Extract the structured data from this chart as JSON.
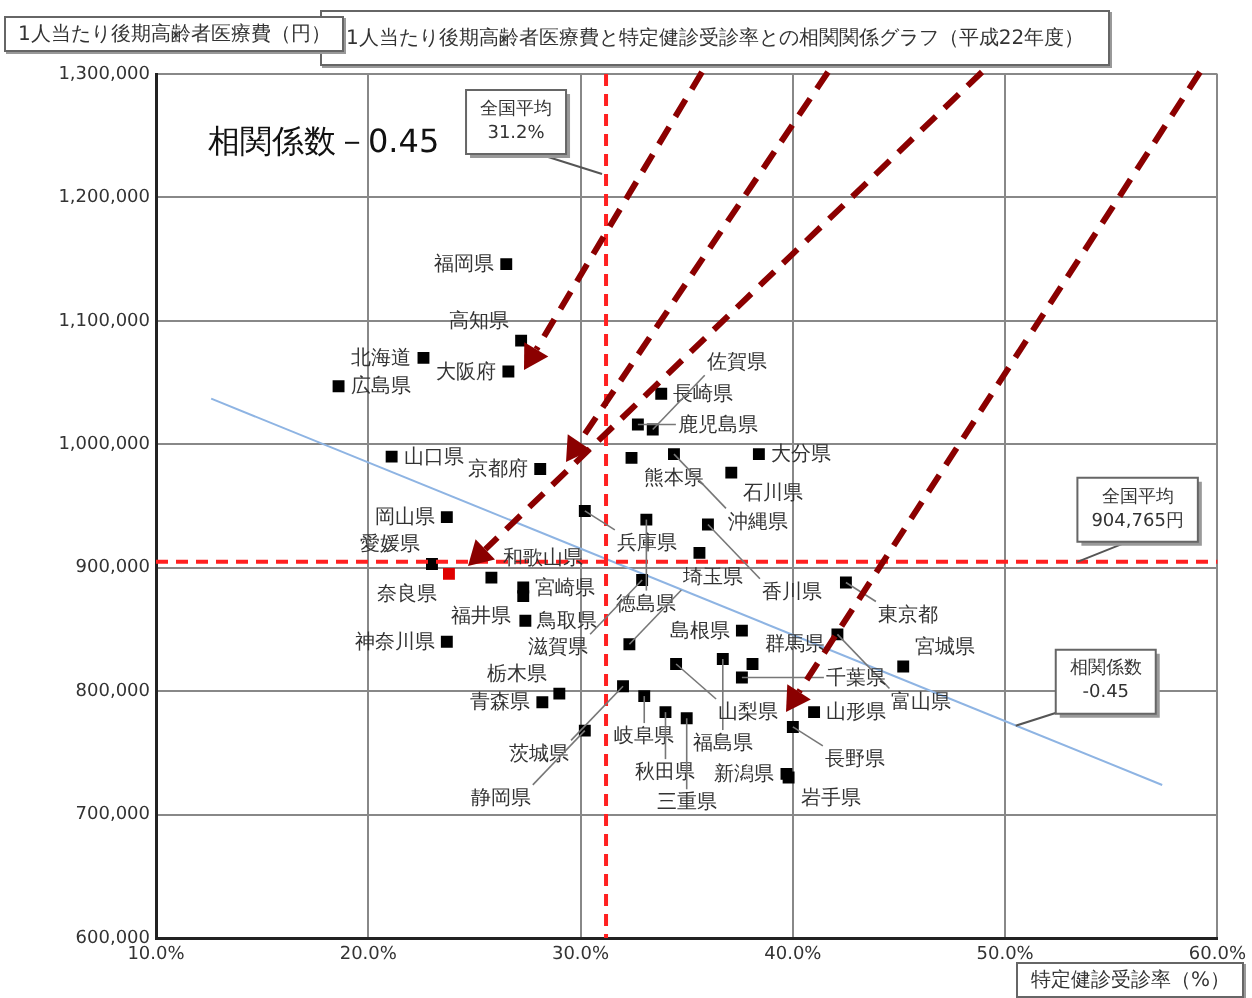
{
  "chart_data": {
    "type": "scatter",
    "title": "1人当たり後期高齢者医療費と特定健診受診率との相関関係グラフ（平成22年度）",
    "xlabel": "特定健診受診率（%）",
    "ylabel": "1人当たり後期高齢者医療費（円）",
    "xlim": [
      10,
      60
    ],
    "xticks": [
      {
        "value": 10,
        "label": "10.0%"
      },
      {
        "value": 20,
        "label": "20.0%"
      },
      {
        "value": 30,
        "label": "30.0%"
      },
      {
        "value": 40,
        "label": "40.0%"
      },
      {
        "value": 50,
        "label": "50.0%"
      },
      {
        "value": 60,
        "label": "60.0%"
      }
    ],
    "ylim": [
      600000,
      1300000
    ],
    "yticks": [
      {
        "value": 600000,
        "label": "600,000"
      },
      {
        "value": 700000,
        "label": "700,000"
      },
      {
        "value": 800000,
        "label": "800,000"
      },
      {
        "value": 900000,
        "label": "900,000"
      },
      {
        "value": 1000000,
        "label": "1,000,000"
      },
      {
        "value": 1100000,
        "label": "1,100,000"
      },
      {
        "value": 1200000,
        "label": "1,200,000"
      },
      {
        "value": 1300000,
        "label": "1,300,000"
      }
    ],
    "grid": true,
    "legend": false,
    "series": [
      {
        "type": "scatter",
        "marker": "square",
        "x": [
          26.5,
          27.2,
          26.6,
          22.6,
          18.6,
          21.1,
          28.1,
          23.7,
          30.2,
          23.0,
          23.8,
          25.8,
          27.3,
          27.3,
          27.4,
          23.7,
          32.4,
          32.7,
          33.8,
          33.4,
          34.4,
          38.4,
          37.1,
          33.1,
          36.0,
          35.6,
          32.9,
          42.5,
          37.6,
          42.1,
          32.3,
          36.7,
          38.1,
          34.5,
          45.2,
          32.0,
          33.0,
          34.0,
          35.0,
          37.6,
          40.0,
          41.0,
          39.7,
          39.8,
          28.2,
          29.0,
          30.2
        ],
        "values": [
          1146000,
          1084000,
          1059000,
          1070000,
          1047000,
          990000,
          980000,
          941000,
          946000,
          903000,
          895000,
          892000,
          884000,
          877000,
          857000,
          840000,
          989000,
          1016000,
          1041000,
          1012000,
          992000,
          992000,
          977000,
          939000,
          935000,
          912000,
          890000,
          888000,
          849000,
          846000,
          838000,
          826000,
          822000,
          822000,
          820000,
          804000,
          796000,
          783000,
          778000,
          811000,
          771000,
          783000,
          733000,
          730000,
          791000,
          798000,
          768000
        ],
        "colors": [
          "#000000",
          "#000000",
          "#000000",
          "#000000",
          "#000000",
          "#000000",
          "#000000",
          "#000000",
          "#000000",
          "#000000",
          "#e00000",
          "#000000",
          "#000000",
          "#000000",
          "#000000",
          "#000000",
          "#000000",
          "#000000",
          "#000000",
          "#000000",
          "#000000",
          "#000000",
          "#000000",
          "#000000",
          "#000000",
          "#000000",
          "#000000",
          "#000000",
          "#000000",
          "#000000",
          "#000000",
          "#000000",
          "#000000",
          "#000000",
          "#000000",
          "#000000",
          "#000000",
          "#000000",
          "#000000",
          "#000000",
          "#000000",
          "#000000",
          "#000000",
          "#000000",
          "#000000",
          "#000000",
          "#000000"
        ]
      },
      {
        "type": "line",
        "x": [
          12.6,
          57.4
        ],
        "values": [
          1037000,
          724000
        ],
        "color": "#8eb4e3"
      }
    ],
    "ref_lines": [
      {
        "axis": "x",
        "value": 31.2,
        "label": "全国平均\n31.2%",
        "color": "#ff2020",
        "line_style": "dashed"
      },
      {
        "axis": "y",
        "value": 904765,
        "label": "全国平均\n904,765円",
        "color": "#ff2020",
        "line_style": "dashed"
      }
    ],
    "annotations": [
      "相関係数－0.45",
      {
        "text": "相関係数\n-0.45",
        "x": 50.5,
        "y": 772000
      },
      {
        "text": "福岡県",
        "x": 26.5,
        "y": 1146000
      },
      {
        "text": "高知県",
        "x": 27.2,
        "y": 1084000
      },
      {
        "text": "大阪府",
        "x": 26.6,
        "y": 1059000
      },
      {
        "text": "北海道",
        "x": 22.6,
        "y": 1070000
      },
      {
        "text": "広島県",
        "x": 18.6,
        "y": 1047000
      },
      {
        "text": "山口県",
        "x": 21.1,
        "y": 990000
      },
      {
        "text": "京都府",
        "x": 28.1,
        "y": 980000
      },
      {
        "text": "岡山県",
        "x": 23.7,
        "y": 941000
      },
      {
        "text": "兵庫県",
        "x": 30.2,
        "y": 946000
      },
      {
        "text": "愛媛県",
        "x": 23.0,
        "y": 903000
      },
      {
        "text": "奈良県",
        "x": 23.8,
        "y": 895000
      },
      {
        "text": "和歌山県",
        "x": 25.8,
        "y": 892000
      },
      {
        "text": "宮崎県",
        "x": 27.3,
        "y": 884000
      },
      {
        "text": "福井県",
        "x": 27.3,
        "y": 877000
      },
      {
        "text": "鳥取県",
        "x": 27.4,
        "y": 857000
      },
      {
        "text": "神奈川県",
        "x": 23.7,
        "y": 840000
      },
      {
        "text": "熊本県",
        "x": 32.4,
        "y": 989000
      },
      {
        "text": "鹿児島県",
        "x": 32.7,
        "y": 1016000
      },
      {
        "text": "長崎県",
        "x": 33.8,
        "y": 1041000
      },
      {
        "text": "佐賀県",
        "x": 33.4,
        "y": 1012000
      },
      {
        "text": "沖縄県",
        "x": 34.4,
        "y": 992000
      },
      {
        "text": "大分県",
        "x": 38.4,
        "y": 992000
      },
      {
        "text": "石川県",
        "x": 37.1,
        "y": 977000
      },
      {
        "text": "徳島県",
        "x": 33.1,
        "y": 939000
      },
      {
        "text": "香川県",
        "x": 36.0,
        "y": 935000
      },
      {
        "text": "滋賀県",
        "x": 32.9,
        "y": 890000
      },
      {
        "text": "東京都",
        "x": 42.5,
        "y": 888000
      },
      {
        "text": "島根県",
        "x": 37.6,
        "y": 849000
      },
      {
        "text": "富山県",
        "x": 42.1,
        "y": 846000
      },
      {
        "text": "埼玉県",
        "x": 32.3,
        "y": 838000
      },
      {
        "text": "福島県",
        "x": 36.7,
        "y": 826000
      },
      {
        "text": "群馬県",
        "x": 38.1,
        "y": 822000
      },
      {
        "text": "山梨県",
        "x": 34.5,
        "y": 822000
      },
      {
        "text": "宮城県",
        "x": 45.2,
        "y": 820000
      },
      {
        "text": "茨城県",
        "x": 32.0,
        "y": 804000
      },
      {
        "text": "岐阜県",
        "x": 33.0,
        "y": 796000
      },
      {
        "text": "秋田県",
        "x": 34.0,
        "y": 783000
      },
      {
        "text": "三重県",
        "x": 35.0,
        "y": 778000
      },
      {
        "text": "千葉県",
        "x": 37.6,
        "y": 811000
      },
      {
        "text": "長野県",
        "x": 40.0,
        "y": 771000
      },
      {
        "text": "山形県",
        "x": 41.0,
        "y": 783000
      },
      {
        "text": "新潟県",
        "x": 39.7,
        "y": 733000
      },
      {
        "text": "岩手県",
        "x": 39.8,
        "y": 730000
      },
      {
        "text": "青森県",
        "x": 28.2,
        "y": 791000
      },
      {
        "text": "栃木県",
        "x": 29.0,
        "y": 798000
      },
      {
        "text": "静岡県",
        "x": 30.2,
        "y": 768000
      }
    ]
  }
}
